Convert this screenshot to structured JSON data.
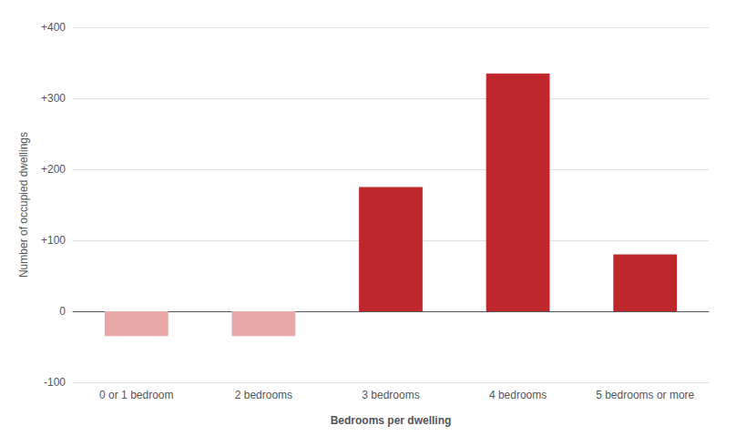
{
  "chart_data": {
    "type": "bar",
    "categories": [
      "0 or 1 bedroom",
      "2 bedrooms",
      "3 bedrooms",
      "4 bedrooms",
      "5 bedrooms or more"
    ],
    "values": [
      -35,
      -35,
      175,
      335,
      80
    ],
    "colors": [
      "#e8a8a8",
      "#e8a8a8",
      "#c0272d",
      "#c0272d",
      "#c0272d"
    ],
    "xlabel": "Bedrooms per dwelling",
    "ylabel": "Number of occupied dwellings",
    "ylim": [
      -100,
      400
    ],
    "yticks": [
      -100,
      0,
      {
        "value": 100,
        "label": "+100"
      },
      {
        "value": 200,
        "label": "+200"
      },
      {
        "value": 300,
        "label": "+300"
      },
      {
        "value": 400,
        "label": "+400"
      }
    ],
    "grid": true
  }
}
